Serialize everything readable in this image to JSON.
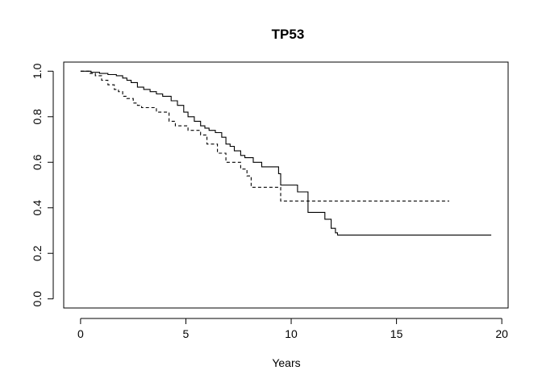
{
  "chart_data": {
    "type": "line",
    "title": "TP53",
    "xlabel": "Years",
    "ylabel": "",
    "xlim": [
      -0.8,
      20.3
    ],
    "ylim": [
      -0.04,
      1.04
    ],
    "xticks": [
      0,
      5,
      10,
      15,
      20
    ],
    "yticks": [
      0.0,
      0.2,
      0.4,
      0.6,
      0.8,
      1.0
    ],
    "x_tick_labels": [
      "0",
      "5",
      "10",
      "15",
      "20"
    ],
    "y_tick_labels": [
      "0.0",
      "0.2",
      "0.4",
      "0.6",
      "0.8",
      "1.0"
    ],
    "grid": false,
    "series": [
      {
        "style": "solid",
        "color": "#000000",
        "x": [
          0,
          0.5,
          0.9,
          1.3,
          1.7,
          2.0,
          2.2,
          2.4,
          2.7,
          3.0,
          3.3,
          3.6,
          3.9,
          4.3,
          4.6,
          4.9,
          5.1,
          5.4,
          5.7,
          5.9,
          6.1,
          6.4,
          6.7,
          6.9,
          7.1,
          7.3,
          7.6,
          7.8,
          8.2,
          8.6,
          9.4,
          9.5,
          10.3,
          10.8,
          11.6,
          11.9,
          12.1,
          12.2,
          19.5
        ],
        "y": [
          1.0,
          0.995,
          0.99,
          0.985,
          0.98,
          0.97,
          0.96,
          0.95,
          0.93,
          0.92,
          0.91,
          0.9,
          0.89,
          0.87,
          0.85,
          0.82,
          0.8,
          0.78,
          0.76,
          0.75,
          0.74,
          0.73,
          0.71,
          0.68,
          0.67,
          0.65,
          0.63,
          0.62,
          0.6,
          0.58,
          0.55,
          0.5,
          0.47,
          0.38,
          0.35,
          0.31,
          0.29,
          0.28,
          0.28
        ]
      },
      {
        "style": "dashed",
        "color": "#000000",
        "x": [
          0,
          0.4,
          0.7,
          1.0,
          1.3,
          1.6,
          1.8,
          2.0,
          2.2,
          2.5,
          2.7,
          2.9,
          3.6,
          4.2,
          4.5,
          5.1,
          5.7,
          6.0,
          6.5,
          6.9,
          7.6,
          7.9,
          8.1,
          9.5,
          17.5
        ],
        "y": [
          1.0,
          0.99,
          0.98,
          0.96,
          0.94,
          0.92,
          0.91,
          0.89,
          0.88,
          0.86,
          0.85,
          0.84,
          0.82,
          0.78,
          0.76,
          0.74,
          0.72,
          0.68,
          0.64,
          0.6,
          0.57,
          0.54,
          0.49,
          0.43,
          0.43
        ]
      }
    ]
  }
}
